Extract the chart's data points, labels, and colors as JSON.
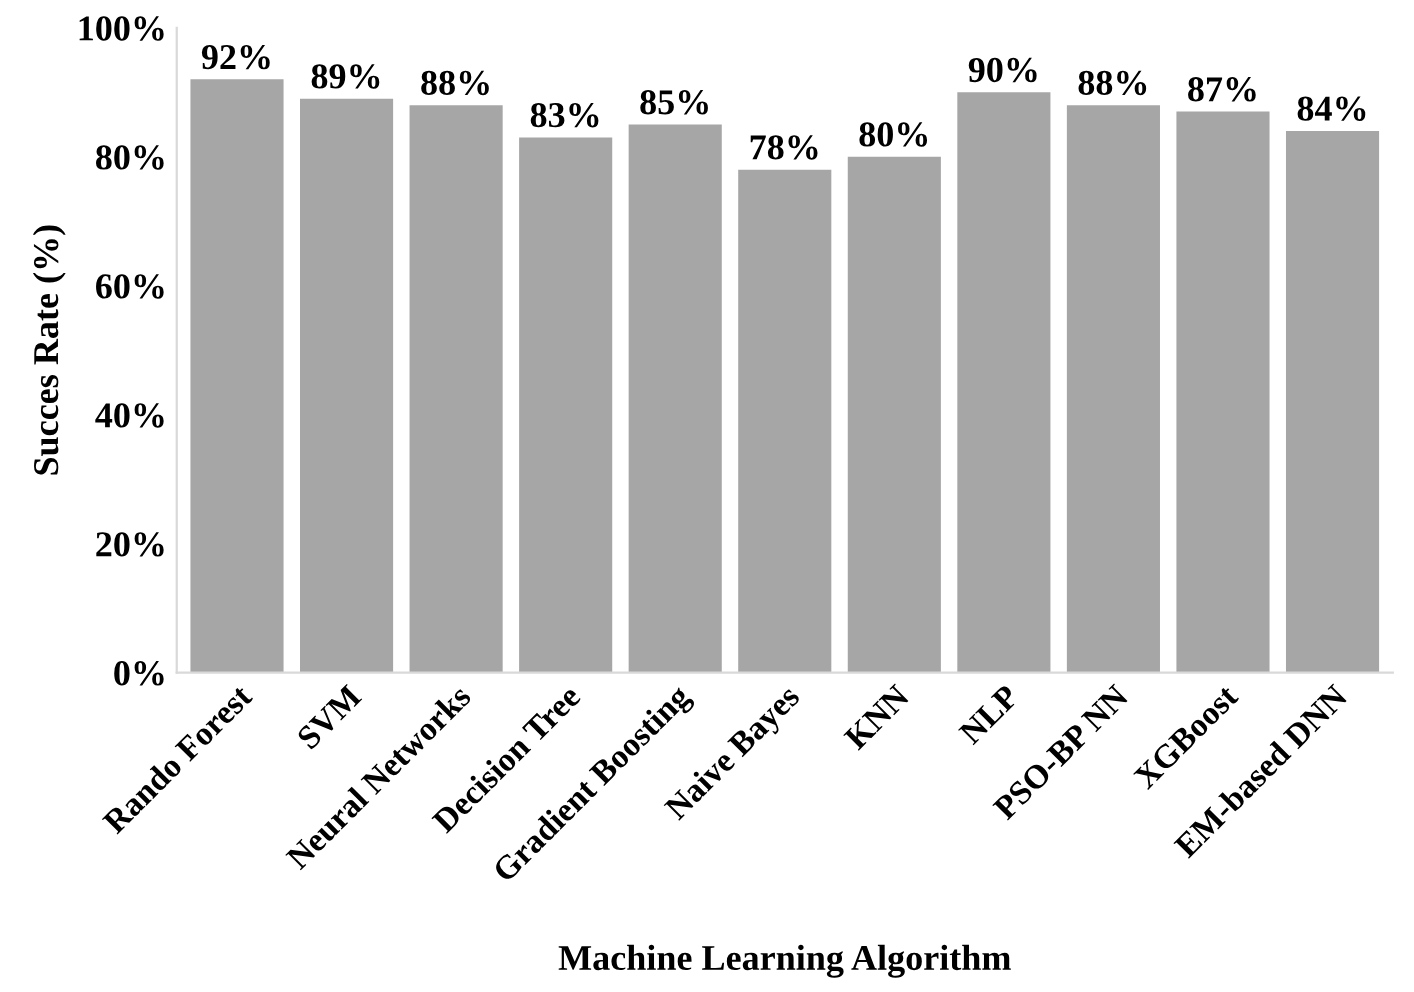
{
  "chart_data": {
    "type": "bar",
    "xlabel": "Machine Learning Algorithm",
    "ylabel": "Succes Rate (%)",
    "categories": [
      "Rando Forest",
      "SVM",
      "Neural Networks",
      "Decision Tree",
      "Gradient Boosting",
      "Naive Bayes",
      "KNN",
      "NLP",
      "PSO-BP NN",
      "XGBoost",
      "EM-based DNN"
    ],
    "values": [
      92,
      89,
      88,
      83,
      85,
      78,
      80,
      90,
      88,
      87,
      84
    ],
    "value_labels": [
      "92%",
      "89%",
      "88%",
      "83%",
      "85%",
      "78%",
      "80%",
      "90%",
      "88%",
      "87%",
      "84%"
    ],
    "color": "#a6a6a6",
    "ylim": [
      0,
      100
    ],
    "yticks": [
      {
        "value": 0,
        "label": "0%"
      },
      {
        "value": 20,
        "label": "20%"
      },
      {
        "value": 40,
        "label": "40%"
      },
      {
        "value": 60,
        "label": "60%"
      },
      {
        "value": 80,
        "label": "80%"
      },
      {
        "value": 100,
        "label": "100%"
      }
    ],
    "grid": false,
    "legend": false
  }
}
